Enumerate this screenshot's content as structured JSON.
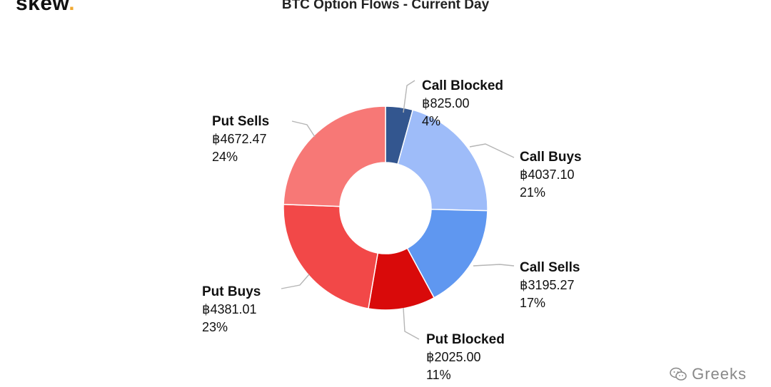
{
  "brand": {
    "logo_text": "skew",
    "logo_dot": ".",
    "accent_color": "#f0a830"
  },
  "watermark": {
    "text": "Greeks",
    "icon": "wechat-icon"
  },
  "chart_data": {
    "type": "pie",
    "title": "BTC Option Flows - Current Day",
    "donut": true,
    "currency_symbol": "฿",
    "slices": [
      {
        "label": "Call Blocked",
        "value_text": "฿825.00",
        "value": 825.0,
        "pct": "4%",
        "color": "#33568f"
      },
      {
        "label": "Call Buys",
        "value_text": "฿4037.10",
        "value": 4037.1,
        "pct": "21%",
        "color": "#9ebcf9"
      },
      {
        "label": "Call Sells",
        "value_text": "฿3195.27",
        "value": 3195.27,
        "pct": "17%",
        "color": "#5f97f0"
      },
      {
        "label": "Put Blocked",
        "value_text": "฿2025.00",
        "value": 2025.0,
        "pct": "11%",
        "color": "#d90a0a"
      },
      {
        "label": "Put Buys",
        "value_text": "฿4381.01",
        "value": 4381.01,
        "pct": "23%",
        "color": "#f24848"
      },
      {
        "label": "Put Sells",
        "value_text": "฿4672.47",
        "value": 4672.47,
        "pct": "24%",
        "color": "#f77876"
      }
    ]
  }
}
